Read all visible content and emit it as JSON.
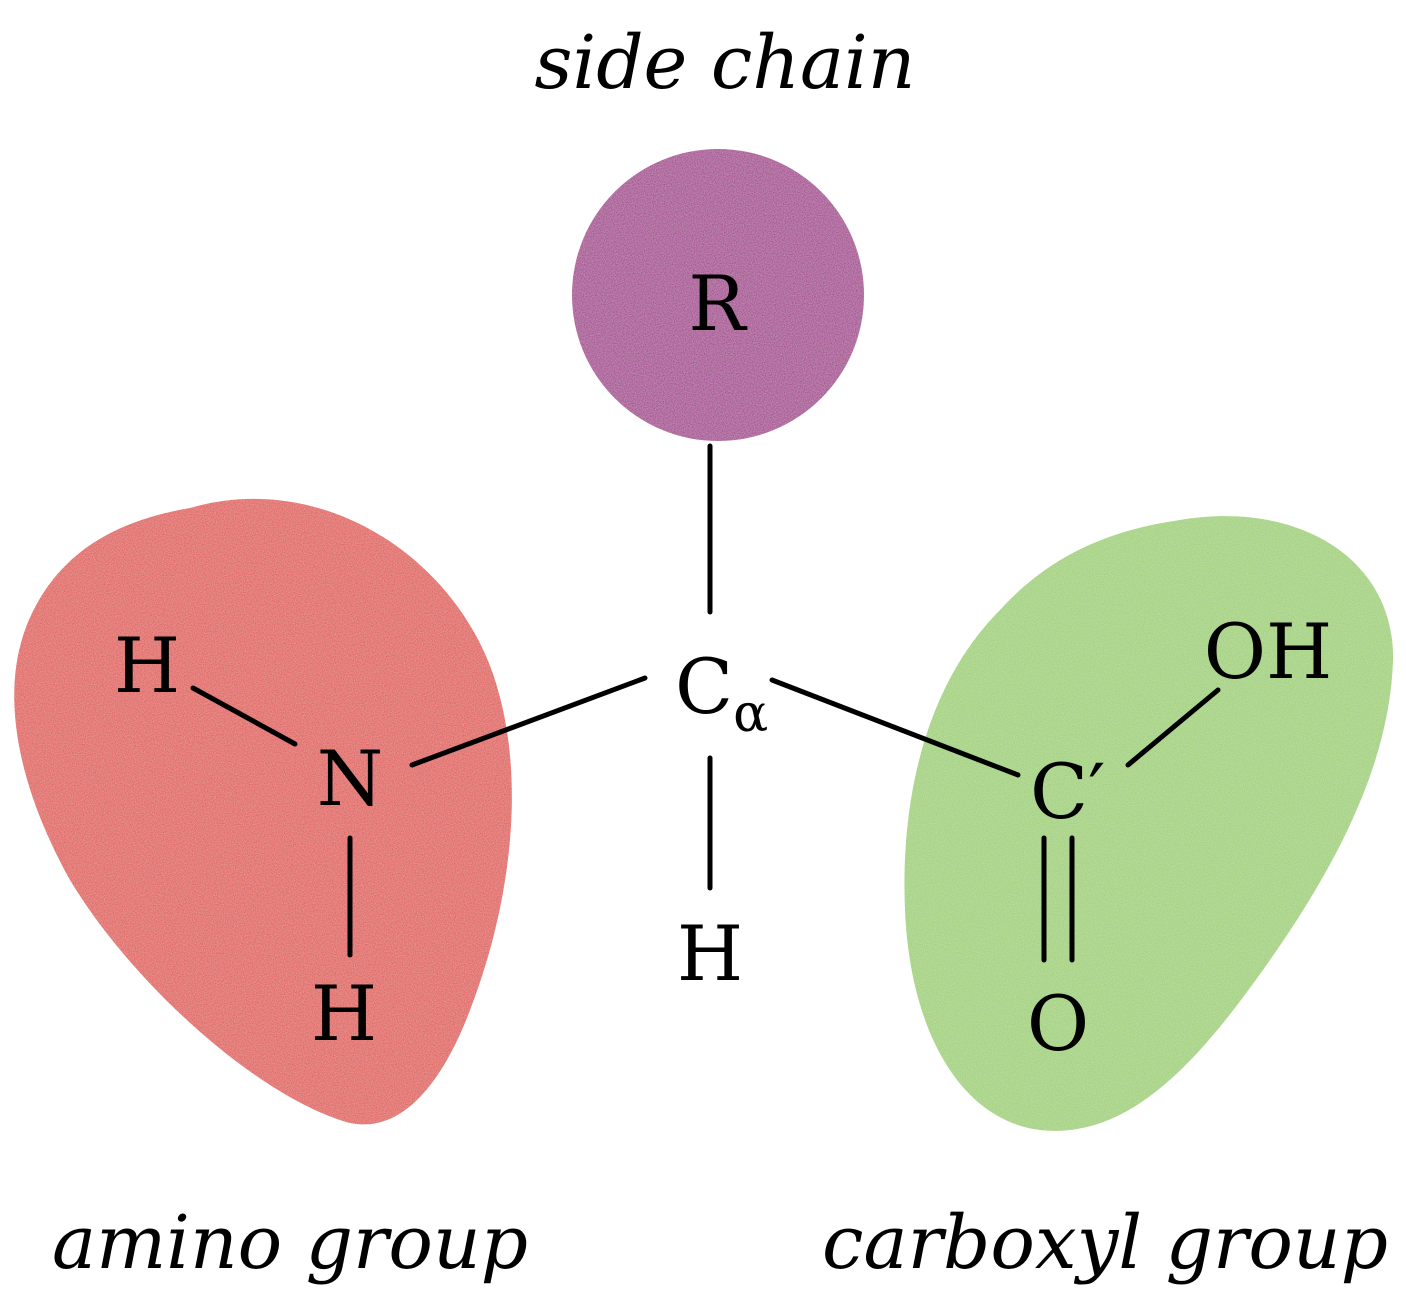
{
  "labels": {
    "side_chain": "side chain",
    "amino_group": "amino group",
    "carboxyl_group": "carboxyl group"
  },
  "atoms": {
    "r": "R",
    "c_alpha_main": "C",
    "c_alpha_sub": "α",
    "n": "N",
    "h_amino_upper": "H",
    "h_amino_lower": "H",
    "h_alpha": "H",
    "c_prime": "C′",
    "oh": "OH",
    "o": "O"
  },
  "colors": {
    "side_chain_blob": "#a4418f",
    "amino_blob": "#e05a55",
    "carboxyl_blob": "#9fd075",
    "text": "#000000",
    "bond": "#000000"
  }
}
